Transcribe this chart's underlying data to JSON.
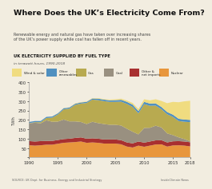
{
  "title": "Where Does the UK’s Electricity Come From?",
  "subtitle": "Renewable energy and natural gas have taken over increasing shares\nof the UK’s power supply while coal has fallen off in recent years.",
  "chart_title": "UK ELECTRICITY SUPPLIED BY FUEL TYPE",
  "chart_subtitle": "in terawatt-hours, 1990-2018",
  "ylabel": "TWh",
  "source": "SOURCE: UK Dept. for Business, Energy and Industrial Strategy",
  "credit": "InsideClimate News",
  "years": [
    1990,
    1991,
    1992,
    1993,
    1994,
    1995,
    1996,
    1997,
    1998,
    1999,
    2000,
    2001,
    2002,
    2003,
    2004,
    2005,
    2006,
    2007,
    2008,
    2009,
    2010,
    2011,
    2012,
    2013,
    2014,
    2015,
    2016,
    2017,
    2018
  ],
  "nuclear": [
    65,
    63,
    65,
    68,
    68,
    73,
    78,
    80,
    82,
    85,
    78,
    80,
    78,
    74,
    74,
    74,
    70,
    58,
    53,
    63,
    57,
    63,
    69,
    70,
    58,
    64,
    65,
    63,
    59
  ],
  "other_imports": [
    22,
    22,
    22,
    20,
    20,
    20,
    20,
    20,
    22,
    22,
    22,
    22,
    22,
    22,
    22,
    22,
    22,
    22,
    22,
    22,
    22,
    22,
    22,
    22,
    22,
    22,
    22,
    22,
    22
  ],
  "coal": [
    95,
    100,
    95,
    110,
    102,
    98,
    104,
    92,
    88,
    82,
    78,
    88,
    83,
    82,
    78,
    78,
    78,
    73,
    62,
    38,
    78,
    73,
    78,
    68,
    48,
    33,
    20,
    13,
    5
  ],
  "gas": [
    1,
    3,
    6,
    12,
    22,
    38,
    54,
    68,
    88,
    98,
    112,
    118,
    122,
    122,
    122,
    122,
    127,
    132,
    132,
    112,
    127,
    117,
    107,
    97,
    102,
    97,
    87,
    92,
    102
  ],
  "other_renew": [
    6,
    6,
    6,
    6,
    6,
    6,
    6,
    6,
    6,
    6,
    6,
    6,
    8,
    8,
    8,
    9,
    10,
    11,
    12,
    12,
    12,
    12,
    12,
    12,
    12,
    12,
    12,
    12,
    12
  ],
  "wind_solar": [
    0,
    0,
    0,
    0,
    0,
    1,
    1,
    1,
    2,
    2,
    2,
    2,
    3,
    3,
    4,
    5,
    6,
    7,
    9,
    11,
    14,
    17,
    22,
    32,
    47,
    68,
    88,
    97,
    102
  ],
  "colors": {
    "nuclear": "#E8963C",
    "other_imports": "#A83030",
    "coal": "#999080",
    "gas": "#B8AA50",
    "other_renew": "#5090C0",
    "wind_solar": "#F0DC80"
  },
  "legend_labels": [
    "Wind & solar",
    "Other\nrenewables",
    "Gas",
    "Coal",
    "Other &\nnet imports",
    "Nuclear"
  ],
  "legend_colors": [
    "#F0DC80",
    "#5090C0",
    "#B8AA50",
    "#999080",
    "#A83030",
    "#E8963C"
  ],
  "ylim": [
    0,
    400
  ],
  "yticks": [
    0,
    50,
    100,
    150,
    200,
    250,
    300,
    350,
    400
  ],
  "xticks": [
    1990,
    1995,
    2000,
    2005,
    2010,
    2015,
    2018
  ],
  "bg_color": "#F2EDE0",
  "title_color": "#111111",
  "subtitle_color": "#444444"
}
